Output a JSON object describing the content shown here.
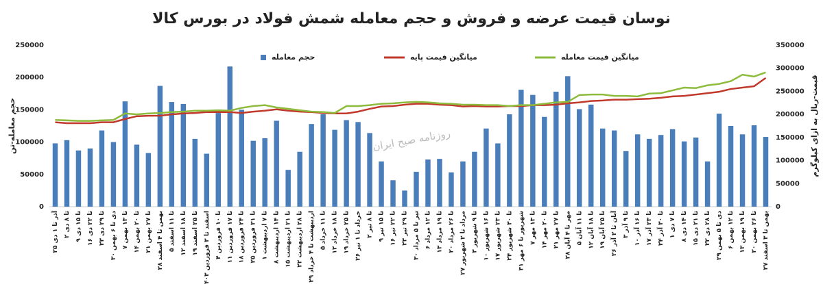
{
  "chart_data": {
    "type": "combo",
    "title": "نوسان قیمت عرضه و فروش و حجم معامله شمش فولاد در بورس کالا",
    "watermark": "روزنامه صبح ایران",
    "y_label": "حجم معامله-تن",
    "y2_label": "قیمت-ریال به ازای کیلوگرم",
    "categories": [
      "۲۵ آذر تا ۱ دی",
      "۲ تا ۸ دی",
      "۹ تا ۱۵ دی",
      "۱۶ تا ۲۲ دی",
      "۲۳ تا ۲۹ دی",
      "۳۰ دی تا ۶ بهمن",
      "۷ تا ۱۳ بهمن",
      "۱۴ تا ۲۰ بهمن",
      "۲۱ تا ۲۷ بهمن",
      "۲۸ بهمن تا ۴ اسفند",
      "۵ تا ۱۱ اسفند",
      "۱۲ تا ۱۸ اسفند",
      "۱۹ تا ۲۵ اسفند",
      "۲۶ اسفند تا ۳ فروردین ۱۴۰۳",
      "۴ تا ۱۰ فروردین",
      "۱۱ تا ۱۷ فروردین",
      "۱۸ تا ۲۴ فروردین",
      "۲۵ تا ۳۱ فروردین",
      "۱ تا ۷ اردیبهشت",
      "۸ تا ۱۴ اردیبهشت",
      "۱۵ تا ۲۱ اردیبهشت",
      "۲۲ تا ۲۸ اردیبهشت",
      "۲۹ اردیبهشت تا ۴ خرداد",
      "۵ تا ۱۱ خرداد",
      "۱۲ تا ۱۸ خرداد",
      "۱۹ تا ۲۵ خرداد",
      "۲۶ خرداد تا ۱ تیر",
      "۲ تا ۸ تیر",
      "۹ تا ۱۵ تیر",
      "۱۶ تا ۲۲ تیر",
      "۲۳ تا ۲۹ تیر",
      "۳۰ تیر تا ۵ مرداد",
      "۶ تا ۱۲ مرداد",
      "۱۳ تا ۱۹ مرداد",
      "۲۰ تا ۲۶ مرداد",
      "۲۷ مرداد تا ۲ شهریور",
      "۳ تا ۹ شهریور",
      "۱۰ تا ۱۶ شهریور",
      "۱۷ تا ۲۳ شهریور",
      "۲۴ تا ۳۰ شهریور",
      "۳۱ شهریور تا ۶ مهر",
      "۷ تا ۱۳ مهر",
      "۱۴ تا ۲۰ مهر",
      "۲۱ تا ۲۷ مهر",
      "۲۸ مهر تا ۴ آبان",
      "۵ تا ۱۱ آبان",
      "۱۲ تا ۱۸ آبان",
      "۱۹ تا ۲۵ آبان",
      "۲۶ آبان تا ۲ آذر",
      "۳ تا ۹ آذر",
      "۱۰ تا ۱۶ آذر",
      "۱۷ تا ۲۳ آذر",
      "۲۴ تا ۳۰ آذر",
      "۱ تا ۷ دی",
      "۸ تا ۱۴ دی",
      "۱۵ تا ۲۱ دی",
      "۲۲ تا ۲۸ دی",
      "۲۹ دی تا ۵ بهمن",
      "۶ تا ۱۲ بهمن",
      "۱۳ تا ۱۹ بهمن",
      "۲۰ تا ۲۶ بهمن",
      "۲۷ بهمن تا ۳ اسفند"
    ],
    "series": [
      {
        "name": "حجم معامله",
        "type": "bar",
        "color": "#4a7ebb",
        "values": [
          98000,
          103000,
          87000,
          90000,
          118000,
          100000,
          163000,
          96000,
          83000,
          187000,
          162000,
          159000,
          105000,
          82000,
          145000,
          217000,
          150000,
          102000,
          106000,
          133000,
          57000,
          85000,
          128000,
          143000,
          119000,
          134000,
          131000,
          114000,
          70000,
          41000,
          25000,
          54000,
          73000,
          74000,
          53000,
          70000,
          85000,
          121000,
          98000,
          143000,
          181000,
          173000,
          139000,
          178000,
          202000,
          151000,
          158000,
          121000,
          118000,
          86000,
          112000,
          105000,
          111000,
          120000,
          101000,
          107000,
          70000,
          144000,
          125000,
          112000,
          126000,
          108000
        ]
      },
      {
        "name": "میانگین قیمت پایه",
        "type": "line",
        "axis": "y2",
        "color": "#c0392b",
        "values": [
          183000,
          181000,
          181000,
          181000,
          183000,
          183000,
          190000,
          196000,
          197000,
          197000,
          200000,
          202000,
          203000,
          205000,
          205000,
          205000,
          203000,
          206000,
          208000,
          211000,
          208000,
          206000,
          205000,
          203000,
          202000,
          202000,
          206000,
          212000,
          217000,
          218000,
          221000,
          223000,
          223000,
          221000,
          220000,
          217000,
          218000,
          217000,
          217000,
          218000,
          218000,
          220000,
          220000,
          221000,
          224000,
          226000,
          229000,
          230000,
          232000,
          232000,
          233000,
          234000,
          236000,
          239000,
          240000,
          243000,
          246000,
          249000,
          255000,
          258000,
          261000,
          279000
        ]
      },
      {
        "name": "میانگین قیمت معامله",
        "type": "line",
        "axis": "y2",
        "color": "#8dbb3c",
        "values": [
          188000,
          187000,
          186000,
          186000,
          187000,
          188000,
          202000,
          200000,
          202000,
          203000,
          205000,
          206000,
          208000,
          208000,
          209000,
          208000,
          214000,
          218000,
          220000,
          215000,
          212000,
          209000,
          206000,
          205000,
          203000,
          218000,
          218000,
          220000,
          223000,
          224000,
          226000,
          227000,
          226000,
          224000,
          223000,
          221000,
          221000,
          220000,
          220000,
          218000,
          220000,
          220000,
          223000,
          226000,
          227000,
          242000,
          243000,
          243000,
          240000,
          240000,
          239000,
          245000,
          246000,
          252000,
          258000,
          257000,
          263000,
          266000,
          272000,
          286000,
          282000,
          291000
        ]
      }
    ],
    "ylim": [
      0,
      250000
    ],
    "yticks": [
      0,
      50000,
      100000,
      150000,
      200000,
      250000
    ],
    "y2lim": [
      0,
      350000
    ],
    "y2ticks": [
      0,
      50000,
      100000,
      150000,
      200000,
      250000,
      300000,
      350000
    ]
  }
}
